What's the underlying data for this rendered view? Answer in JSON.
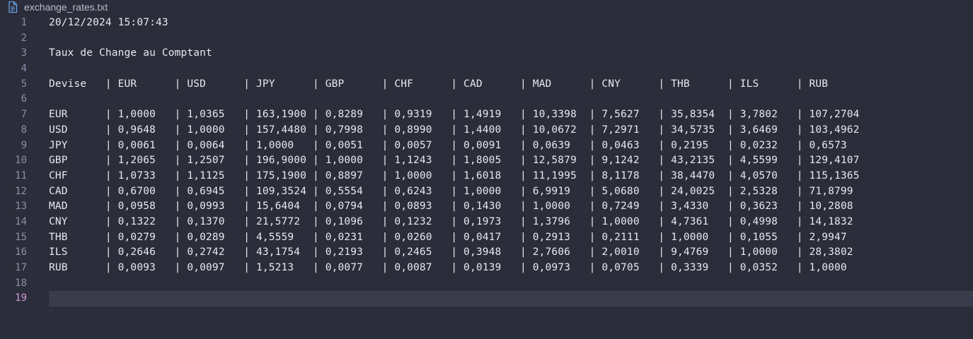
{
  "tab": {
    "file_icon": "file-text-icon",
    "file_name": "exchange_rates.txt"
  },
  "colors": {
    "background": "#2b2d3a",
    "text": "#e6e9f2",
    "line_number": "#8a90a8",
    "active_line_number": "#d79ad6",
    "active_line_highlight": "#3a3c4b",
    "file_icon": "#6aa0e8"
  },
  "active_line": 19,
  "lines": [
    {
      "number": "1",
      "text": "20/12/2024 15:07:43"
    },
    {
      "number": "2",
      "text": ""
    },
    {
      "number": "3",
      "text": "Taux de Change au Comptant"
    },
    {
      "number": "4",
      "text": ""
    },
    {
      "number": "5",
      "text": "Devise   | EUR      | USD      | JPY      | GBP      | CHF      | CAD      | MAD      | CNY      | THB      | ILS      | RUB"
    },
    {
      "number": "6",
      "text": ""
    },
    {
      "number": "7",
      "text": "EUR      | 1,0000   | 1,0365   | 163,1900 | 0,8289   | 0,9319   | 1,4919   | 10,3398  | 7,5627   | 35,8354  | 3,7802   | 107,2704"
    },
    {
      "number": "8",
      "text": "USD      | 0,9648   | 1,0000   | 157,4480 | 0,7998   | 0,8990   | 1,4400   | 10,0672  | 7,2971   | 34,5735  | 3,6469   | 103,4962"
    },
    {
      "number": "9",
      "text": "JPY      | 0,0061   | 0,0064   | 1,0000   | 0,0051   | 0,0057   | 0,0091   | 0,0639   | 0,0463   | 0,2195   | 0,0232   | 0,6573"
    },
    {
      "number": "10",
      "text": "GBP      | 1,2065   | 1,2507   | 196,9000 | 1,0000   | 1,1243   | 1,8005   | 12,5879  | 9,1242   | 43,2135  | 4,5599   | 129,4107"
    },
    {
      "number": "11",
      "text": "CHF      | 1,0733   | 1,1125   | 175,1900 | 0,8897   | 1,0000   | 1,6018   | 11,1995  | 8,1178   | 38,4470  | 4,0570   | 115,1365"
    },
    {
      "number": "12",
      "text": "CAD      | 0,6700   | 0,6945   | 109,3524 | 0,5554   | 0,6243   | 1,0000   | 6,9919   | 5,0680   | 24,0025  | 2,5328   | 71,8799"
    },
    {
      "number": "13",
      "text": "MAD      | 0,0958   | 0,0993   | 15,6404  | 0,0794   | 0,0893   | 0,1430   | 1,0000   | 0,7249   | 3,4330   | 0,3623   | 10,2808"
    },
    {
      "number": "14",
      "text": "CNY      | 0,1322   | 0,1370   | 21,5772  | 0,1096   | 0,1232   | 0,1973   | 1,3796   | 1,0000   | 4,7361   | 0,4998   | 14,1832"
    },
    {
      "number": "15",
      "text": "THB      | 0,0279   | 0,0289   | 4,5559   | 0,0231   | 0,0260   | 0,0417   | 0,2913   | 0,2111   | 1,0000   | 0,1055   | 2,9947"
    },
    {
      "number": "16",
      "text": "ILS      | 0,2646   | 0,2742   | 43,1754  | 0,2193   | 0,2465   | 0,3948   | 2,7606   | 2,0010   | 9,4769   | 1,0000   | 28,3802"
    },
    {
      "number": "17",
      "text": "RUB      | 0,0093   | 0,0097   | 1,5213   | 0,0077   | 0,0087   | 0,0139   | 0,0973   | 0,0705   | 0,3339   | 0,0352   | 1,0000"
    },
    {
      "number": "18",
      "text": ""
    },
    {
      "number": "19",
      "text": ""
    }
  ]
}
